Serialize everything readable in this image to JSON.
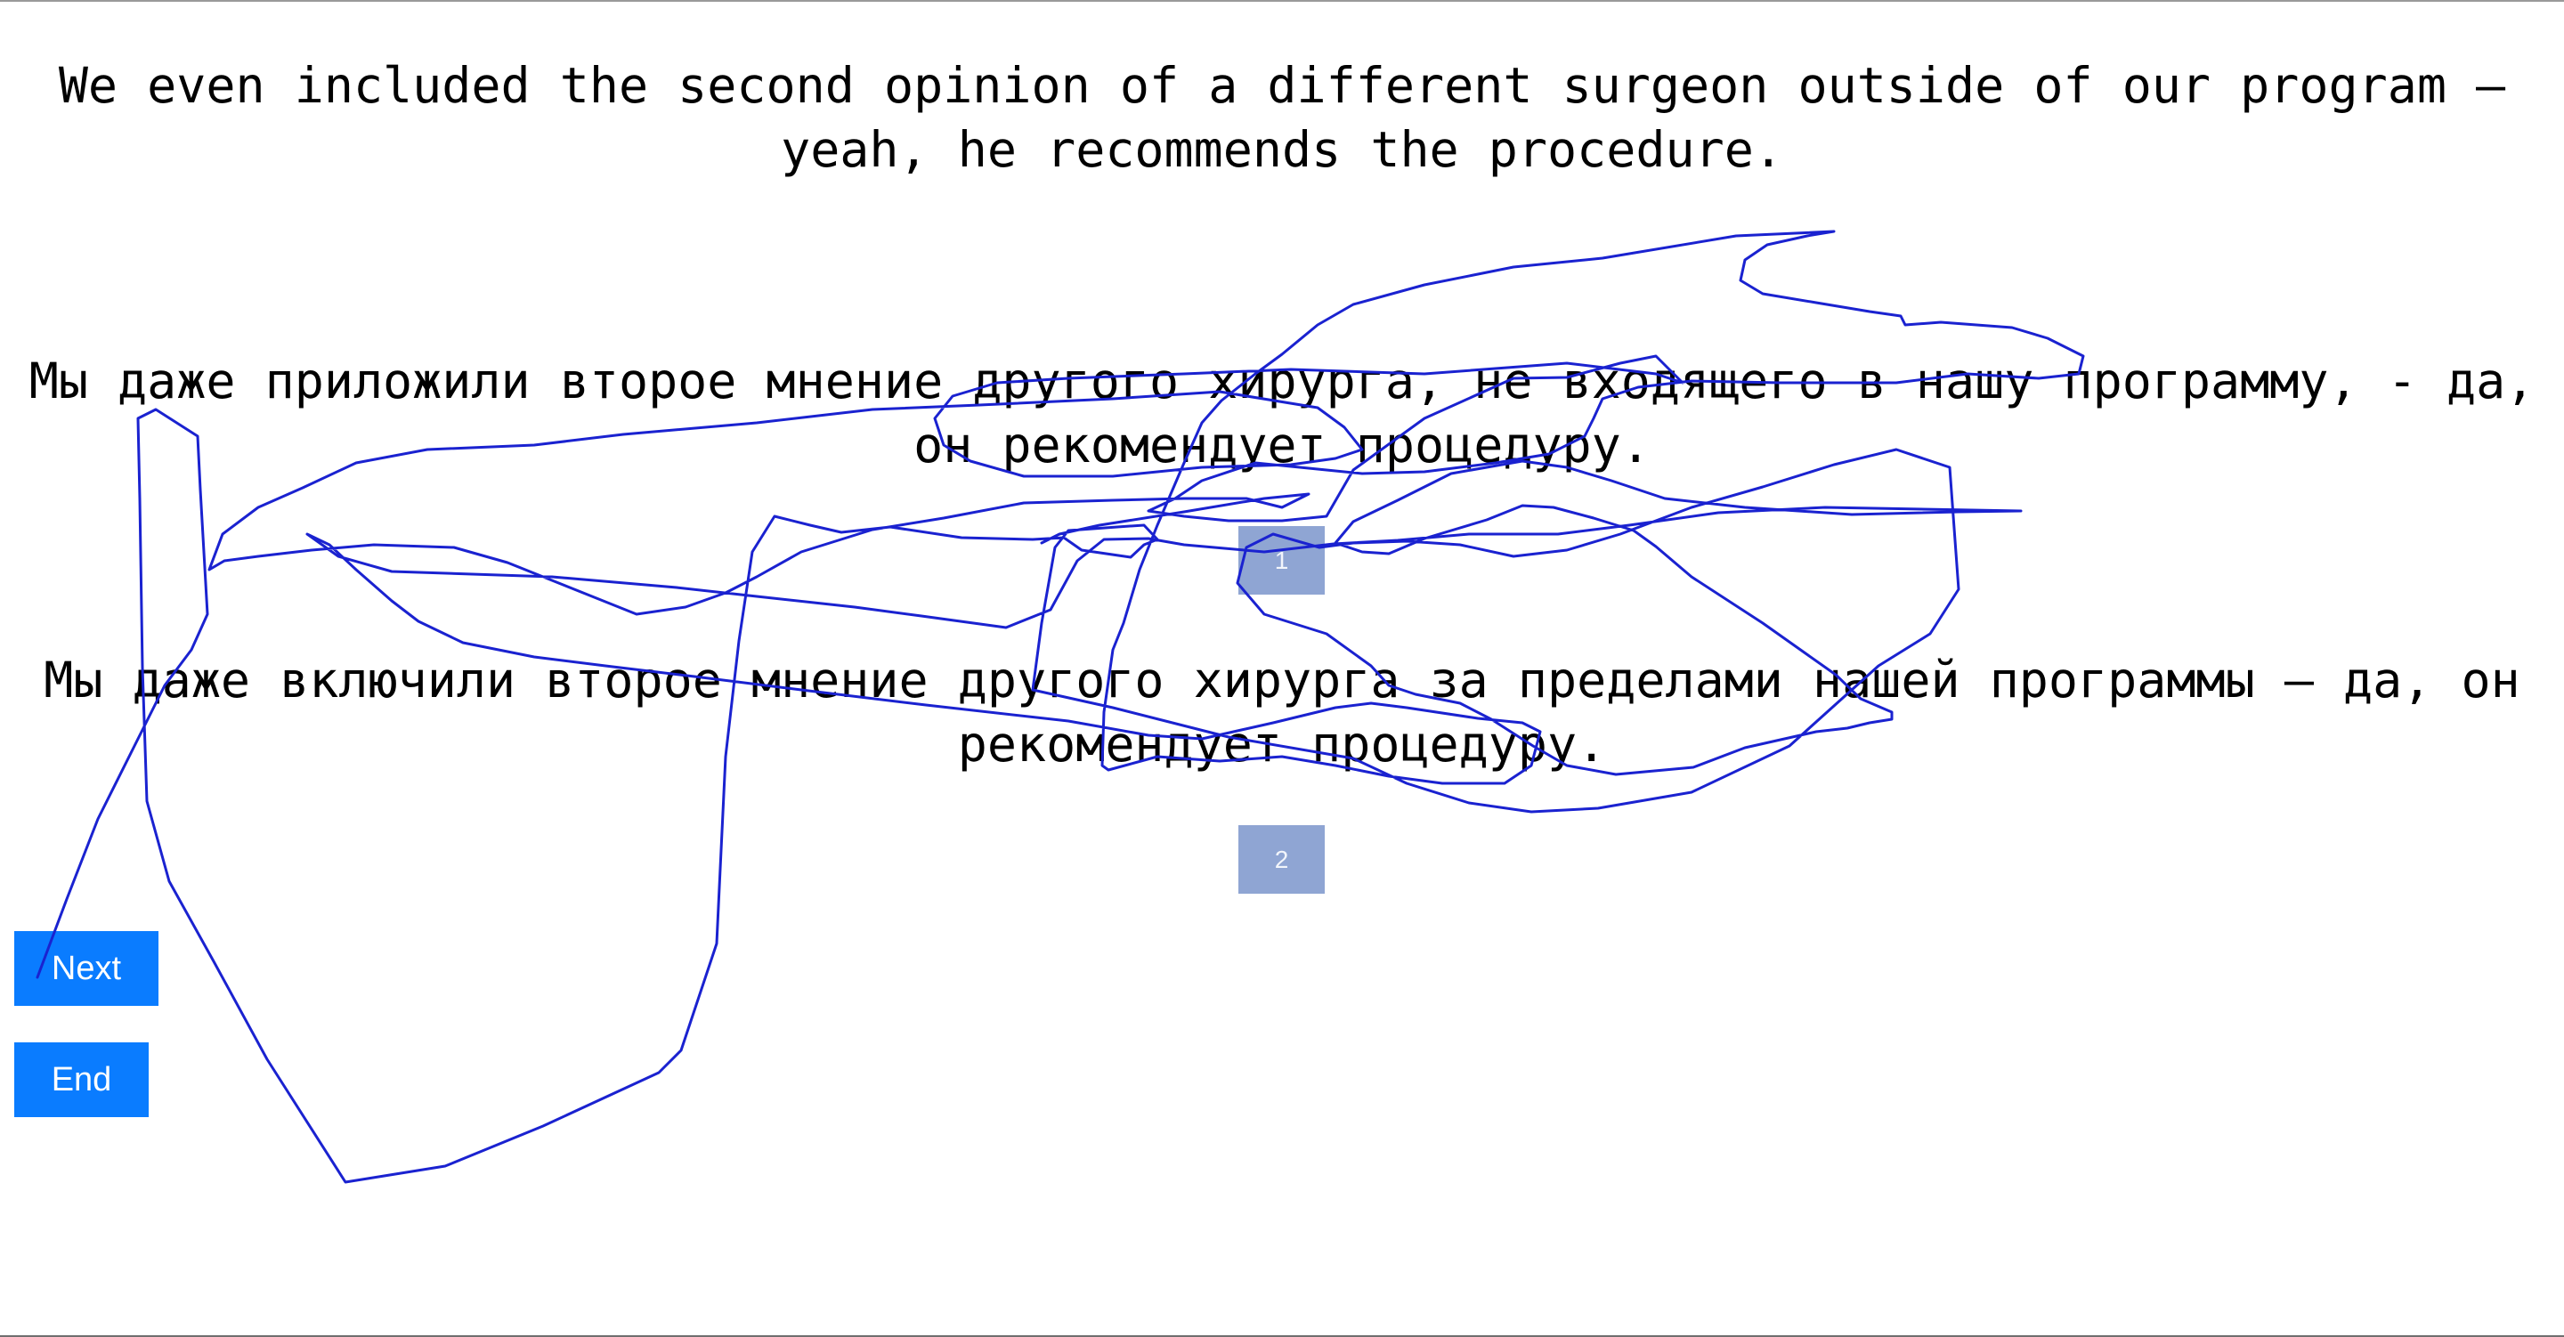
{
  "source_sentence": "We even included the second opinion of a different surgeon outside of our program — yeah, he recommends the procedure.",
  "translations": [
    {
      "text": "Мы даже приложили второе мнение другого хирурга, не входящего в нашу программу, - да, он рекомендует процедуру.",
      "rank_label": "1"
    },
    {
      "text": "Мы даже включили второе мнение другого хирурга за пределами нашей программы — да, он рекомендует процедуру.",
      "rank_label": "2"
    }
  ],
  "buttons": {
    "next_label": "Next",
    "end_label": "End"
  },
  "colors": {
    "rank_button": "#8fa5d3",
    "nav_button": "#0a7cff",
    "pen_stroke": "#1a22d0"
  }
}
